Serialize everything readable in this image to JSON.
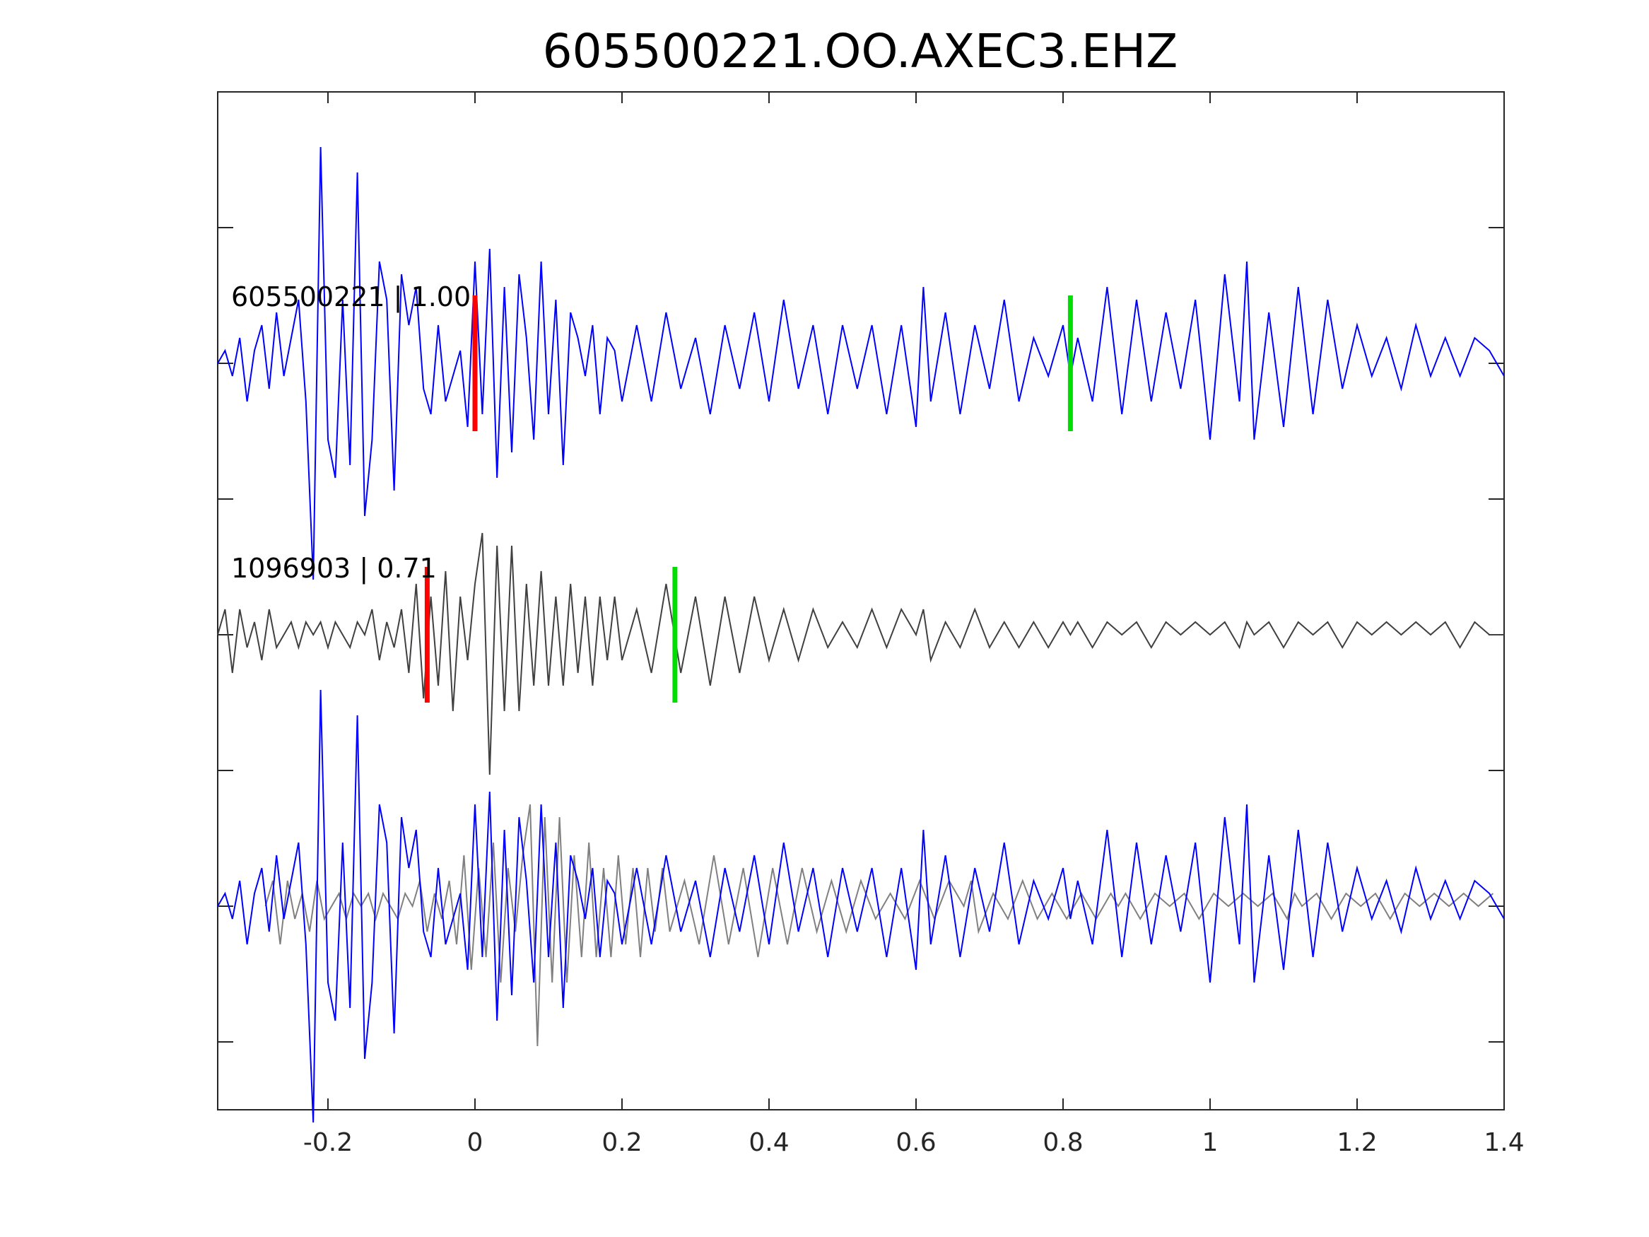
{
  "chart_data": {
    "type": "line",
    "title": "605500221.OO.AXEC3.EHZ",
    "xlabel": "",
    "ylabel": "",
    "xlim": [
      -0.35,
      1.4
    ],
    "x_ticks": [
      -0.2,
      0,
      0.2,
      0.4,
      0.6,
      0.8,
      1,
      1.2,
      1.4
    ],
    "x_tick_labels": [
      "-0.2",
      "0",
      "0.2",
      "0.4",
      "0.6",
      "0.8",
      "1",
      "1.2",
      "1.4"
    ],
    "grid": false,
    "colors": {
      "template": "#0000ff",
      "detected": "#404040",
      "overlay_detected": "#808080",
      "p_pick": "#ff0000",
      "s_pick": "#00dd00"
    },
    "traces": [
      {
        "label": "605500221 | 1.00",
        "event_id": "605500221",
        "correlation": 1.0,
        "color": "#0000ff",
        "baseline_y": 0,
        "p_pick": 0.0,
        "s_pick": 0.81,
        "samples_x": [
          -0.35,
          -0.34,
          -0.33,
          -0.32,
          -0.31,
          -0.3,
          -0.29,
          -0.28,
          -0.27,
          -0.26,
          -0.25,
          -0.24,
          -0.23,
          -0.22,
          -0.21,
          -0.2,
          -0.19,
          -0.18,
          -0.17,
          -0.16,
          -0.15,
          -0.14,
          -0.13,
          -0.12,
          -0.11,
          -0.1,
          -0.09,
          -0.08,
          -0.07,
          -0.06,
          -0.05,
          -0.04,
          -0.03,
          -0.02,
          -0.01,
          0.0,
          0.01,
          0.02,
          0.03,
          0.04,
          0.05,
          0.06,
          0.07,
          0.08,
          0.09,
          0.1,
          0.11,
          0.12,
          0.13,
          0.14,
          0.15,
          0.16,
          0.17,
          0.18,
          0.19,
          0.2,
          0.22,
          0.24,
          0.26,
          0.28,
          0.3,
          0.32,
          0.34,
          0.36,
          0.38,
          0.4,
          0.42,
          0.44,
          0.46,
          0.48,
          0.5,
          0.52,
          0.54,
          0.56,
          0.58,
          0.6,
          0.61,
          0.62,
          0.64,
          0.66,
          0.68,
          0.7,
          0.72,
          0.74,
          0.76,
          0.78,
          0.8,
          0.81,
          0.82,
          0.84,
          0.86,
          0.88,
          0.9,
          0.92,
          0.94,
          0.96,
          0.98,
          1.0,
          1.02,
          1.04,
          1.05,
          1.06,
          1.08,
          1.1,
          1.12,
          1.14,
          1.16,
          1.18,
          1.2,
          1.22,
          1.24,
          1.26,
          1.28,
          1.3,
          1.32,
          1.34,
          1.36,
          1.38,
          1.4
        ],
        "samples_y": [
          0.0,
          0.1,
          -0.1,
          0.2,
          -0.3,
          0.1,
          0.3,
          -0.2,
          0.4,
          -0.1,
          0.2,
          0.5,
          -0.3,
          -1.7,
          1.7,
          -0.6,
          -0.9,
          0.5,
          -0.8,
          1.5,
          -1.2,
          -0.6,
          0.8,
          0.5,
          -1.0,
          0.7,
          0.3,
          0.6,
          -0.2,
          -0.4,
          0.3,
          -0.3,
          -0.1,
          0.1,
          -0.5,
          0.8,
          -0.4,
          0.9,
          -0.9,
          0.6,
          -0.7,
          0.7,
          0.2,
          -0.6,
          0.8,
          -0.4,
          0.5,
          -0.8,
          0.4,
          0.2,
          -0.1,
          0.3,
          -0.4,
          0.2,
          0.1,
          -0.3,
          0.3,
          -0.3,
          0.4,
          -0.2,
          0.2,
          -0.4,
          0.3,
          -0.2,
          0.4,
          -0.3,
          0.5,
          -0.2,
          0.3,
          -0.4,
          0.3,
          -0.2,
          0.3,
          -0.4,
          0.3,
          -0.5,
          0.6,
          -0.3,
          0.4,
          -0.4,
          0.3,
          -0.2,
          0.5,
          -0.3,
          0.2,
          -0.1,
          0.3,
          -0.1,
          0.2,
          -0.3,
          0.6,
          -0.4,
          0.5,
          -0.3,
          0.4,
          -0.2,
          0.5,
          -0.6,
          0.7,
          -0.3,
          0.8,
          -0.6,
          0.4,
          -0.5,
          0.6,
          -0.4,
          0.5,
          -0.2,
          0.3,
          -0.1,
          0.2,
          -0.2,
          0.3,
          -0.1,
          0.2,
          -0.1,
          0.2,
          0.1,
          -0.1
        ]
      },
      {
        "label": "1096903 | 0.71",
        "event_id": "1096903",
        "correlation": 0.71,
        "color": "#404040",
        "baseline_y": -1,
        "p_pick": -0.065,
        "s_pick": 0.272,
        "samples_x": [
          -0.35,
          -0.34,
          -0.33,
          -0.32,
          -0.31,
          -0.3,
          -0.29,
          -0.28,
          -0.27,
          -0.26,
          -0.25,
          -0.24,
          -0.23,
          -0.22,
          -0.21,
          -0.2,
          -0.19,
          -0.18,
          -0.17,
          -0.16,
          -0.15,
          -0.14,
          -0.13,
          -0.12,
          -0.11,
          -0.1,
          -0.09,
          -0.08,
          -0.07,
          -0.06,
          -0.05,
          -0.04,
          -0.03,
          -0.02,
          -0.01,
          0.0,
          0.01,
          0.02,
          0.03,
          0.04,
          0.05,
          0.06,
          0.07,
          0.08,
          0.09,
          0.1,
          0.11,
          0.12,
          0.13,
          0.14,
          0.15,
          0.16,
          0.17,
          0.18,
          0.19,
          0.2,
          0.22,
          0.24,
          0.26,
          0.28,
          0.3,
          0.32,
          0.34,
          0.36,
          0.38,
          0.4,
          0.42,
          0.44,
          0.46,
          0.48,
          0.5,
          0.52,
          0.54,
          0.56,
          0.58,
          0.6,
          0.61,
          0.62,
          0.64,
          0.66,
          0.68,
          0.7,
          0.72,
          0.74,
          0.76,
          0.78,
          0.8,
          0.81,
          0.82,
          0.84,
          0.86,
          0.88,
          0.9,
          0.92,
          0.94,
          0.96,
          0.98,
          1.0,
          1.02,
          1.04,
          1.05,
          1.06,
          1.08,
          1.1,
          1.12,
          1.14,
          1.16,
          1.18,
          1.2,
          1.22,
          1.24,
          1.26,
          1.28,
          1.3,
          1.32,
          1.34,
          1.36,
          1.38,
          1.4
        ],
        "samples_y": [
          0.0,
          0.2,
          -0.3,
          0.2,
          -0.1,
          0.1,
          -0.2,
          0.2,
          -0.1,
          0.0,
          0.1,
          -0.1,
          0.1,
          0.0,
          0.1,
          -0.1,
          0.1,
          0.0,
          -0.1,
          0.1,
          0.0,
          0.2,
          -0.2,
          0.1,
          -0.1,
          0.2,
          -0.3,
          0.4,
          -0.5,
          0.3,
          -0.4,
          0.5,
          -0.6,
          0.3,
          -0.2,
          0.4,
          0.8,
          -1.1,
          0.7,
          -0.6,
          0.7,
          -0.6,
          0.4,
          -0.4,
          0.5,
          -0.4,
          0.3,
          -0.4,
          0.4,
          -0.3,
          0.3,
          -0.4,
          0.3,
          -0.2,
          0.3,
          -0.2,
          0.2,
          -0.3,
          0.4,
          -0.3,
          0.3,
          -0.4,
          0.3,
          -0.3,
          0.3,
          -0.2,
          0.2,
          -0.2,
          0.2,
          -0.1,
          0.1,
          -0.1,
          0.2,
          -0.1,
          0.2,
          0.0,
          0.2,
          -0.2,
          0.1,
          -0.1,
          0.2,
          -0.1,
          0.1,
          -0.1,
          0.1,
          -0.1,
          0.1,
          0.0,
          0.1,
          -0.1,
          0.1,
          0.0,
          0.1,
          -0.1,
          0.1,
          0.0,
          0.1,
          0.0,
          0.1,
          -0.1,
          0.1,
          0.0,
          0.1,
          -0.1,
          0.1,
          0.0,
          0.1,
          -0.1,
          0.1,
          0.0,
          0.1,
          0.0,
          0.1,
          0.0,
          0.1,
          -0.1,
          0.1,
          0.0,
          0.0
        ]
      }
    ],
    "overlay": {
      "baseline_y": -2,
      "series": [
        "605500221 | 1.00",
        "1096903 | 0.71"
      ],
      "detected_shift": 0.065
    }
  }
}
